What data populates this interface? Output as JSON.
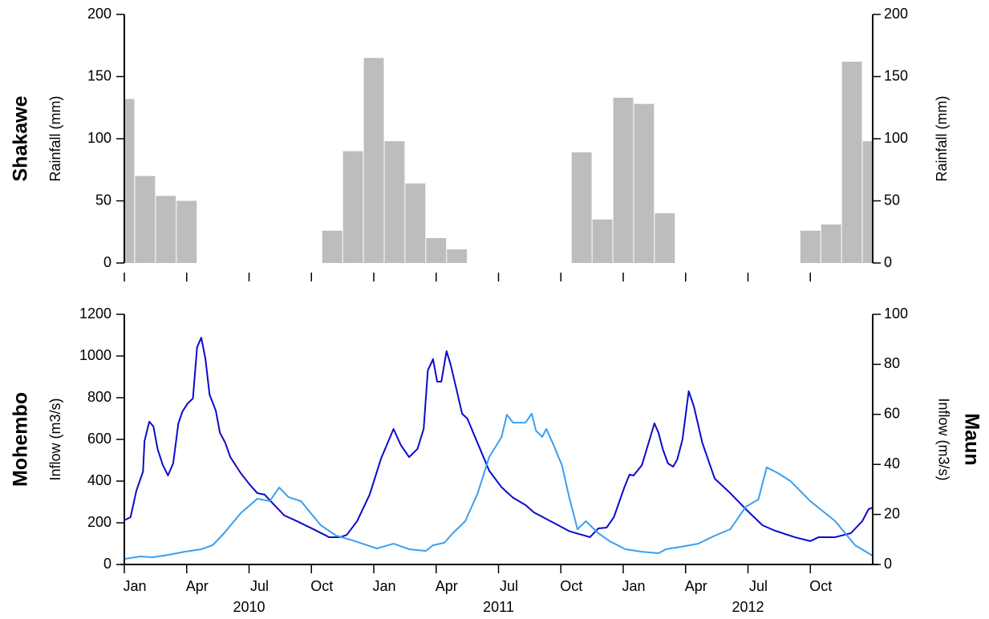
{
  "chart_data": [
    {
      "type": "bar",
      "y_label": "Rainfall (mm)",
      "y2_label": "Rainfall (mm)",
      "x": [
        0,
        1,
        2,
        3,
        4,
        5,
        6,
        7,
        8,
        9,
        10,
        11,
        12,
        13,
        14,
        15,
        16,
        17,
        18,
        19,
        20,
        21,
        22,
        23,
        24,
        25,
        26,
        27,
        28,
        29,
        30,
        31,
        32,
        33,
        34,
        35,
        36
      ],
      "series": [
        {
          "name": "Shakawe",
          "color": "#bdbdbd",
          "values": [
            132,
            70,
            54,
            50,
            0,
            0,
            0,
            0,
            0,
            0,
            26,
            90,
            165,
            98,
            64,
            20,
            11,
            0,
            0,
            0,
            0,
            0,
            89,
            35,
            133,
            128,
            40,
            0,
            0,
            0,
            0,
            0,
            0,
            26,
            31,
            162,
            98
          ]
        }
      ],
      "xlim": [
        0,
        36
      ],
      "xticks": [
        0,
        3,
        6,
        9,
        12,
        15,
        18,
        21,
        24,
        27,
        30,
        33
      ],
      "ylim": [
        0,
        200
      ],
      "yticks": [
        0,
        50,
        100,
        150,
        200
      ],
      "y2lim": [
        0,
        200
      ],
      "y2ticks": [
        0,
        50,
        100,
        150,
        200
      ]
    },
    {
      "type": "line",
      "y_label": "Inflow (m3/s)",
      "y2_label": "Inflow (m3/s)",
      "series": [
        {
          "name": "Mohembo",
          "color": "#0a0acc",
          "x": [
            0,
            0.3,
            0.58,
            0.9,
            0.97,
            1.2,
            1.4,
            1.6,
            1.85,
            2.1,
            2.35,
            2.6,
            2.8,
            3.05,
            3.3,
            3.5,
            3.7,
            3.9,
            4.1,
            4.4,
            4.6,
            4.85,
            5.1,
            5.6,
            6.05,
            6.4,
            6.75,
            7.15,
            7.7,
            8.3,
            9.1,
            9.85,
            10.4,
            10.7,
            11.2,
            11.8,
            12.35,
            12.95,
            13.3,
            13.7,
            14.1,
            14.4,
            14.6,
            14.85,
            15.05,
            15.25,
            15.5,
            15.7,
            16.0,
            16.25,
            16.5,
            17.0,
            17.55,
            18.15,
            18.7,
            19.3,
            19.7,
            20.65,
            21.4,
            22.4,
            22.8,
            23.2,
            23.55,
            24.05,
            24.3,
            24.5,
            24.9,
            25.5,
            25.7,
            25.9,
            26.15,
            26.4,
            26.6,
            26.85,
            27.15,
            27.4,
            27.8,
            28.4,
            29.15,
            29.9,
            30.7,
            31.3,
            32.25,
            33.0,
            33.4,
            34.2,
            34.95,
            35.5,
            35.8,
            36
          ],
          "values": [
            212,
            227,
            354,
            446,
            592,
            685,
            662,
            554,
            477,
            427,
            485,
            677,
            735,
            773,
            796,
            1042,
            1088,
            988,
            815,
            738,
            631,
            585,
            515,
            438,
            381,
            342,
            335,
            292,
            235,
            208,
            169,
            131,
            131,
            142,
            208,
            335,
            508,
            650,
            573,
            515,
            554,
            650,
            931,
            985,
            877,
            877,
            1023,
            958,
            831,
            723,
            700,
            581,
            450,
            370,
            320,
            285,
            250,
            200,
            160,
            131,
            173,
            177,
            227,
            369,
            431,
            427,
            477,
            677,
            631,
            554,
            485,
            469,
            504,
            600,
            831,
            758,
            585,
            412,
            342,
            265,
            188,
            162,
            131,
            112,
            131,
            131,
            150,
            208,
            265,
            273
          ]
        },
        {
          "name": "Maun",
          "color": "#3a9ff0",
          "axis": "y2",
          "x": [
            0,
            0.77,
            1.35,
            2.1,
            2.9,
            3.7,
            4.25,
            4.8,
            5.6,
            6.4,
            7.0,
            7.45,
            7.9,
            8.5,
            8.9,
            9.45,
            10.2,
            11.0,
            12.15,
            12.95,
            13.7,
            14.5,
            14.85,
            15.4,
            15.8,
            16.4,
            17.0,
            17.55,
            18.15,
            18.4,
            18.7,
            19.3,
            19.6,
            19.8,
            20.1,
            20.3,
            20.6,
            21.05,
            21.4,
            21.8,
            22.2,
            22.8,
            23.35,
            24.1,
            24.9,
            25.7,
            26.05,
            26.8,
            27.6,
            28.4,
            29.15,
            29.9,
            30.5,
            30.9,
            31.45,
            32.05,
            33.0,
            34.2,
            35.15,
            36
          ],
          "values": [
            2.2,
            3.2,
            2.9,
            3.8,
            5.1,
            6.1,
            7.7,
            12.5,
            20.5,
            26.3,
            25.3,
            30.8,
            26.9,
            25.3,
            21.2,
            15.7,
            11.5,
            9.6,
            6.4,
            8.3,
            6.1,
            5.4,
            7.7,
            8.7,
            12.5,
            17.3,
            28.5,
            42.9,
            51.0,
            59.9,
            56.7,
            56.7,
            60.3,
            53.5,
            51.0,
            54.2,
            48.7,
            39.7,
            26.9,
            14.1,
            17.3,
            12.5,
            9.3,
            6.1,
            5.1,
            4.5,
            6.1,
            7.1,
            8.3,
            11.5,
            14.1,
            23.1,
            26.0,
            38.8,
            36.5,
            33.3,
            25.3,
            17.3,
            7.7,
            3.5
          ]
        }
      ],
      "xlim": [
        0,
        36
      ],
      "xticks": [
        {
          "value": 0,
          "label": "Jan"
        },
        {
          "value": 3,
          "label": "Apr"
        },
        {
          "value": 6,
          "label": "Jul"
        },
        {
          "value": 9,
          "label": "Oct"
        },
        {
          "value": 12,
          "label": "Jan"
        },
        {
          "value": 15,
          "label": "Apr"
        },
        {
          "value": 18,
          "label": "Jul"
        },
        {
          "value": 21,
          "label": "Oct"
        },
        {
          "value": 24,
          "label": "Jan"
        },
        {
          "value": 27,
          "label": "Apr"
        },
        {
          "value": 30,
          "label": "Jul"
        },
        {
          "value": 33,
          "label": "Oct"
        }
      ],
      "year_ticks": [
        {
          "value": 6,
          "label": "2010"
        },
        {
          "value": 18,
          "label": "2011"
        },
        {
          "value": 30,
          "label": "2012"
        }
      ],
      "ylim": [
        0,
        1200
      ],
      "yticks": [
        0,
        200,
        400,
        600,
        800,
        1000,
        1200
      ],
      "y2lim": [
        0,
        100
      ],
      "y2ticks": [
        0,
        20,
        40,
        60,
        80,
        100
      ]
    }
  ]
}
